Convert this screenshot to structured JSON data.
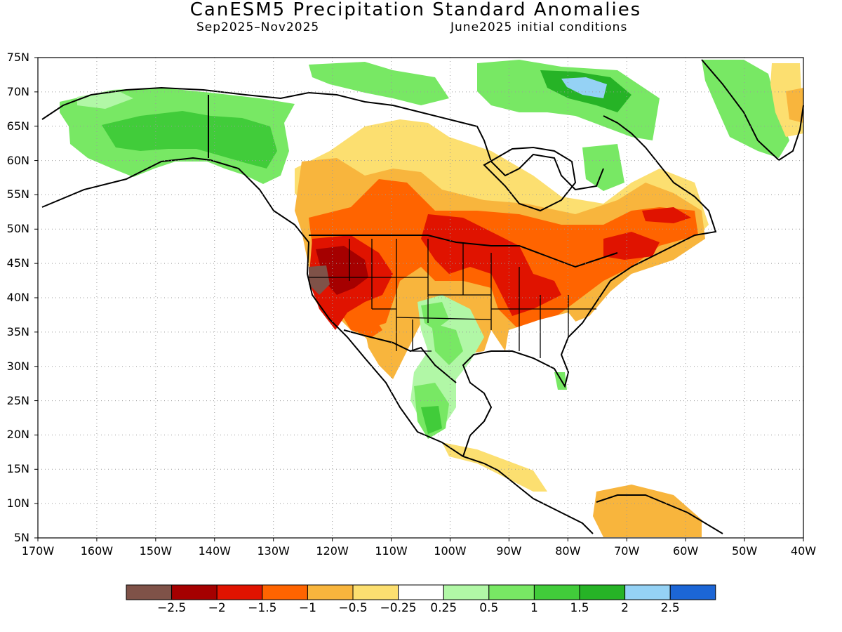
{
  "title": "CanESM5 Precipitation Standard Anomalies",
  "subtitle_left": "Sep2025–Nov2025",
  "subtitle_right": "June2025 initial conditions",
  "map": {
    "lon_range": [
      -170,
      -40
    ],
    "lat_range": [
      5,
      75
    ],
    "lon_ticks": [
      "170W",
      "160W",
      "150W",
      "140W",
      "130W",
      "120W",
      "110W",
      "100W",
      "90W",
      "80W",
      "70W",
      "60W",
      "50W",
      "40W"
    ],
    "lat_ticks": [
      "75N",
      "70N",
      "65N",
      "60N",
      "55N",
      "50N",
      "45N",
      "40N",
      "35N",
      "30N",
      "25N",
      "20N",
      "15N",
      "10N",
      "5N"
    ],
    "grid": "dotted"
  },
  "colorbar": {
    "colors": [
      "#7f5248",
      "#a50000",
      "#e01300",
      "#ff6400",
      "#f8b53d",
      "#fcdf70",
      "#ffffff",
      "#b1f7a6",
      "#78e864",
      "#41cc3a",
      "#26b326",
      "#95d2f5",
      "#1c66d6"
    ],
    "labels": [
      "−2.5",
      "−2",
      "−1.5",
      "−1",
      "−0.5",
      "−0.25",
      "0.25",
      "0.5",
      "1",
      "1.5",
      "2",
      "2.5"
    ]
  },
  "palette": {
    "brown": "#7f5248",
    "darkred": "#a50000",
    "red": "#e01300",
    "darkorange": "#ff6400",
    "orange": "#f8b53d",
    "yellow": "#fcdf70",
    "ltgreen": "#b1f7a6",
    "green": "#78e864",
    "midgreen": "#41cc3a",
    "dkgreen": "#26b326",
    "ltblue": "#95d2f5"
  }
}
